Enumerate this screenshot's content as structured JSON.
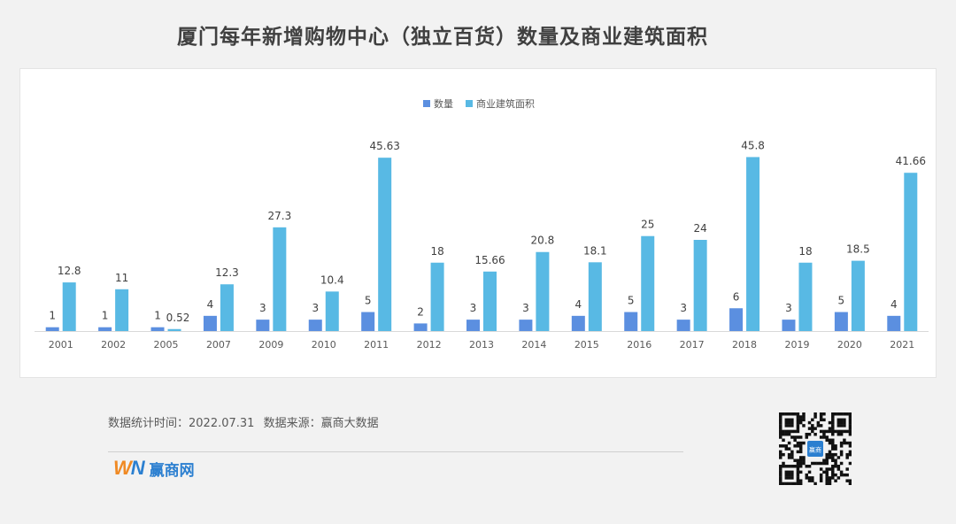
{
  "title": "厦门每年新增购物中心（独立百货）数量及商业建筑面积",
  "footer": {
    "stat_time": "数据统计时间：2022.07.31",
    "source": "数据来源：赢商大数据"
  },
  "brand": {
    "name": "赢商网",
    "icon": "winshang-logo"
  },
  "qr_code": {
    "icon": "qr-code-icon",
    "center_label": "赢商"
  },
  "colors": {
    "count_series": "#5b8fe0",
    "area_series": "#58b9e4",
    "background": "#f2f2f2"
  },
  "chart_data": {
    "type": "bar",
    "title": "厦门每年新增购物中心（独立百货）数量及商业建筑面积",
    "xlabel": "",
    "ylabel": "",
    "categories": [
      "2001",
      "2002",
      "2005",
      "2007",
      "2009",
      "2010",
      "2011",
      "2012",
      "2013",
      "2014",
      "2015",
      "2016",
      "2017",
      "2018",
      "2019",
      "2020",
      "2021"
    ],
    "series": [
      {
        "name": "数量",
        "values": [
          1,
          1,
          1,
          4,
          3,
          3,
          5,
          2,
          3,
          3,
          4,
          5,
          3,
          6,
          3,
          5,
          4
        ],
        "labels": [
          "1",
          "1",
          "1",
          "4",
          "3",
          "3",
          "5",
          "2",
          "3",
          "3",
          "4",
          "5",
          "3",
          "6",
          "3",
          "5",
          "4"
        ]
      },
      {
        "name": "商业建筑面积",
        "values": [
          12.8,
          11,
          0.52,
          12.3,
          27.3,
          10.4,
          45.63,
          18,
          15.66,
          20.8,
          18.1,
          25,
          24,
          45.8,
          18,
          18.5,
          41.66
        ],
        "labels": [
          "12.8",
          "11",
          "0.52",
          "12.3",
          "27.3",
          "10.4",
          "45.63",
          "18",
          "15.66",
          "20.8",
          "18.1",
          "25",
          "24",
          "45.8",
          "18",
          "18.5",
          "41.66"
        ]
      }
    ],
    "ylim": [
      0,
      48
    ],
    "grid": false,
    "legend_position": "top-center",
    "y_axis_visible": false
  }
}
